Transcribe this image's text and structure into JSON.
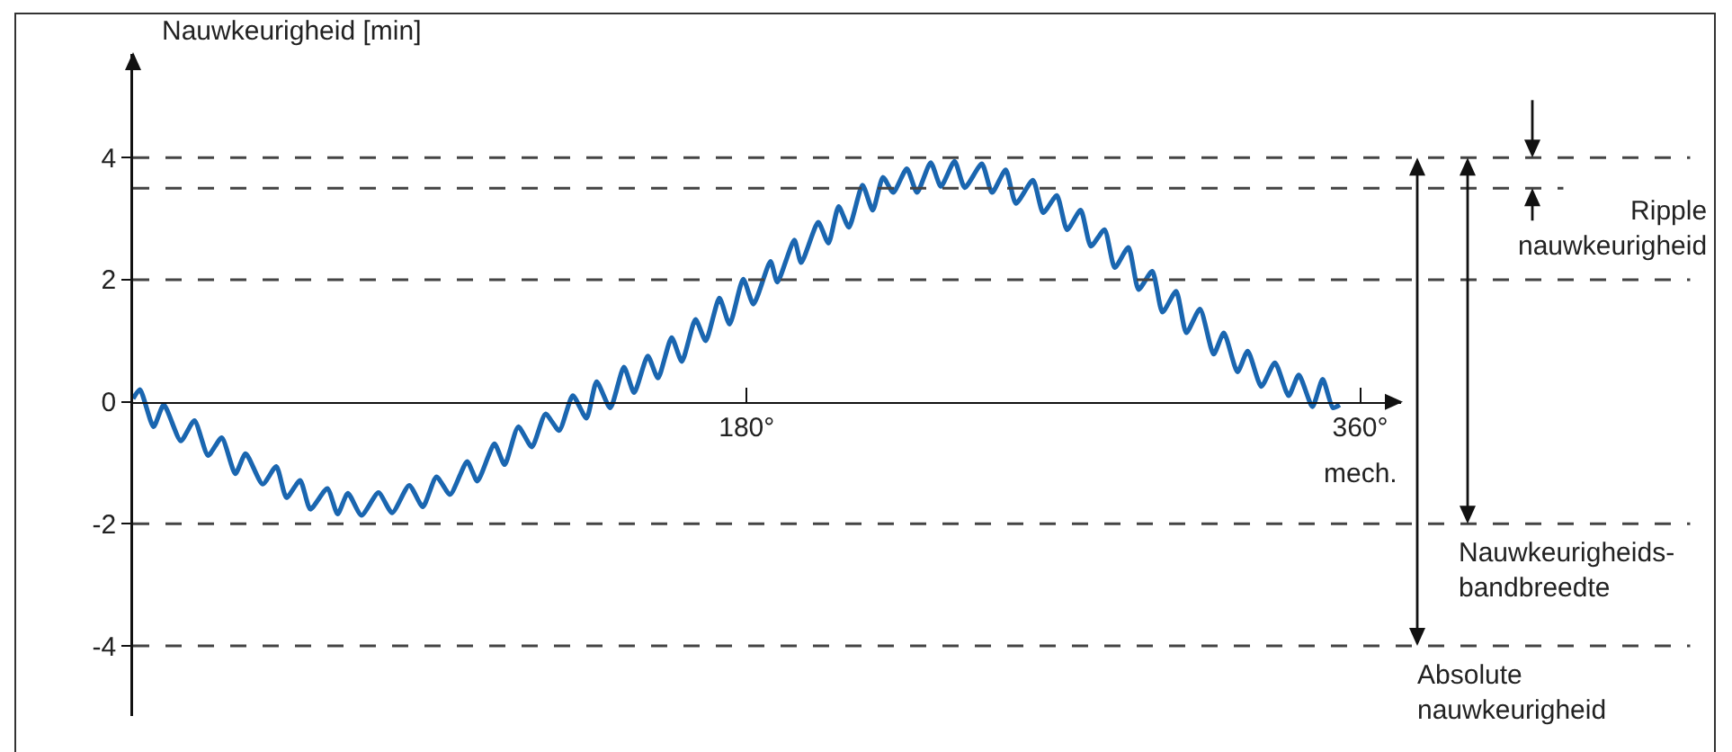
{
  "chart_data": {
    "type": "line",
    "ylabel": "Nauwkeurigheid [min]",
    "xlabel": "mech.",
    "xlim": [
      0,
      372
    ],
    "xticks": [
      {
        "value": 180,
        "label": "180°"
      },
      {
        "value": 360,
        "label": "360°"
      }
    ],
    "ylim": [
      -5.15,
      5.7
    ],
    "yticks": [
      -4,
      -2,
      0,
      2,
      4
    ],
    "x": [
      0,
      2,
      6,
      9,
      14,
      18,
      22,
      26,
      30,
      33,
      38,
      42,
      45,
      49,
      52,
      57,
      60,
      63,
      67,
      72,
      76,
      81,
      85,
      89,
      93,
      98,
      101,
      106,
      109,
      113,
      117,
      121,
      125,
      129,
      133,
      136,
      140,
      144,
      147,
      151,
      154,
      158,
      161,
      165,
      168,
      172,
      175,
      179,
      182,
      187,
      189,
      194,
      196,
      201,
      204,
      207,
      210,
      214,
      217,
      220,
      223,
      227,
      230,
      234,
      237,
      241,
      244,
      249,
      252,
      256,
      259,
      264,
      267,
      271,
      274,
      278,
      281,
      285,
      288,
      292,
      295,
      299,
      302,
      306,
      309,
      313,
      317,
      320,
      324,
      327,
      331,
      335,
      339,
      342,
      346,
      349,
      352,
      354
    ],
    "series": [
      {
        "color": "#1a66b0",
        "values": [
          0.05,
          0.2,
          -0.41,
          -0.05,
          -0.64,
          -0.31,
          -0.88,
          -0.59,
          -1.18,
          -0.85,
          -1.35,
          -1.06,
          -1.57,
          -1.29,
          -1.76,
          -1.42,
          -1.84,
          -1.5,
          -1.86,
          -1.49,
          -1.82,
          -1.37,
          -1.72,
          -1.23,
          -1.52,
          -0.98,
          -1.3,
          -0.69,
          -1.03,
          -0.41,
          -0.74,
          -0.2,
          -0.47,
          0.1,
          -0.27,
          0.33,
          -0.1,
          0.57,
          0.15,
          0.75,
          0.39,
          1.05,
          0.66,
          1.35,
          1.0,
          1.7,
          1.27,
          2.01,
          1.6,
          2.3,
          1.96,
          2.65,
          2.28,
          2.94,
          2.6,
          3.2,
          2.86,
          3.55,
          3.14,
          3.68,
          3.43,
          3.82,
          3.43,
          3.92,
          3.53,
          3.94,
          3.51,
          3.9,
          3.43,
          3.8,
          3.25,
          3.63,
          3.1,
          3.38,
          2.82,
          3.14,
          2.55,
          2.82,
          2.2,
          2.53,
          1.84,
          2.14,
          1.47,
          1.81,
          1.13,
          1.52,
          0.78,
          1.13,
          0.49,
          0.83,
          0.25,
          0.64,
          0.1,
          0.44,
          -0.08,
          0.37,
          -0.1,
          -0.05
        ]
      }
    ],
    "marker": "none",
    "line_style": "solid",
    "grid": false,
    "ref_lines": [
      {
        "axis": "y",
        "value": 4,
        "line_style": "dashed",
        "color": "#444444"
      },
      {
        "axis": "y",
        "value": 2,
        "line_style": "dashed",
        "color": "#444444"
      },
      {
        "axis": "y",
        "value": -2,
        "line_style": "dashed",
        "color": "#444444"
      },
      {
        "axis": "y",
        "value": -4,
        "line_style": "dashed",
        "color": "#444444"
      },
      {
        "axis": "y",
        "value": 3.5,
        "line_style": "dashed",
        "color": "#444444"
      }
    ],
    "annotations": [
      "Absolute\nnauwkeurigheid",
      "Nauwkeurigheids-\nbandbreedte",
      "Ripple\nnauwkeurigheid"
    ]
  }
}
